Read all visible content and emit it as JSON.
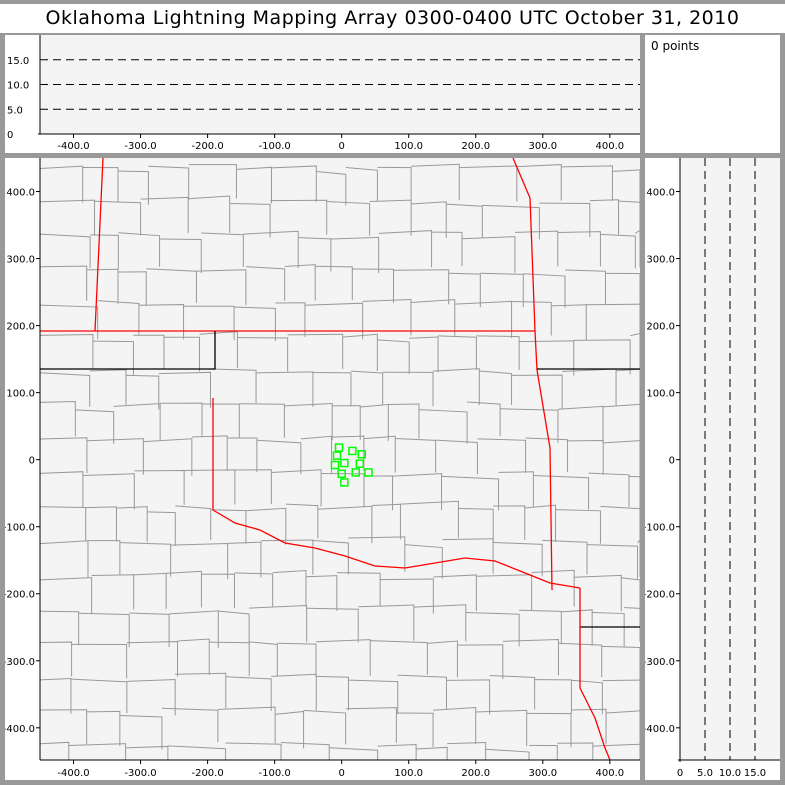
{
  "title": "Oklahoma Lightning Mapping Array   0300-0400 UTC  October 31, 2010",
  "info_panel": {
    "points_label": "0 points"
  },
  "colors": {
    "state_border": "#ff0000",
    "county_line": "#999999",
    "station": "#00ff00",
    "plot_bg": "#f4f4f4",
    "frame": "#999999"
  },
  "chart_data": [
    {
      "type": "scatter",
      "name_panel": "altitude-vs-east-west",
      "x_ticks": [
        "-400.0",
        "-300.0",
        "-200.0",
        "-100.0",
        "0",
        "100.0",
        "200.0",
        "300.0",
        "400.0"
      ],
      "y_ticks": [
        "0",
        "5.0",
        "10.0",
        "15.0"
      ],
      "xlim": [
        -450,
        445
      ],
      "ylim": [
        0,
        20
      ],
      "grid": "dashed horizontal at 5, 10, 15",
      "points": []
    },
    {
      "type": "scatter",
      "name_panel": "plan-view-map",
      "x_ticks": [
        "-400.0",
        "-300.0",
        "-200.0",
        "-100.0",
        "0",
        "100.0",
        "200.0",
        "300.0",
        "400.0"
      ],
      "y_ticks": [
        "400.0",
        "300.0",
        "200.0",
        "100.0",
        "0",
        "-100.0",
        "-200.0",
        "-300.0",
        "-400.0"
      ],
      "xlim": [
        -450,
        445
      ],
      "ylim": [
        -448,
        450
      ],
      "stations": [
        [
          -4,
          18
        ],
        [
          16,
          13
        ],
        [
          30,
          8
        ],
        [
          -7,
          6
        ],
        [
          4,
          -5
        ],
        [
          -10,
          -8
        ],
        [
          27,
          -6
        ],
        [
          0,
          -21
        ],
        [
          21,
          -19
        ],
        [
          40,
          -19
        ],
        [
          4,
          -34
        ]
      ]
    },
    {
      "type": "scatter",
      "name_panel": "north-south-vs-altitude",
      "x_ticks": [
        "0",
        "5.0",
        "10.0",
        "15.0"
      ],
      "y_ticks": [
        "400.0",
        "300.0",
        "200.0",
        "100.0",
        "0",
        "-100.0",
        "-200.0",
        "-300.0",
        "-400.0"
      ],
      "xlim": [
        0,
        20
      ],
      "ylim": [
        -448,
        450
      ],
      "grid": "dashed vertical at 5, 10, 15",
      "points": []
    }
  ]
}
